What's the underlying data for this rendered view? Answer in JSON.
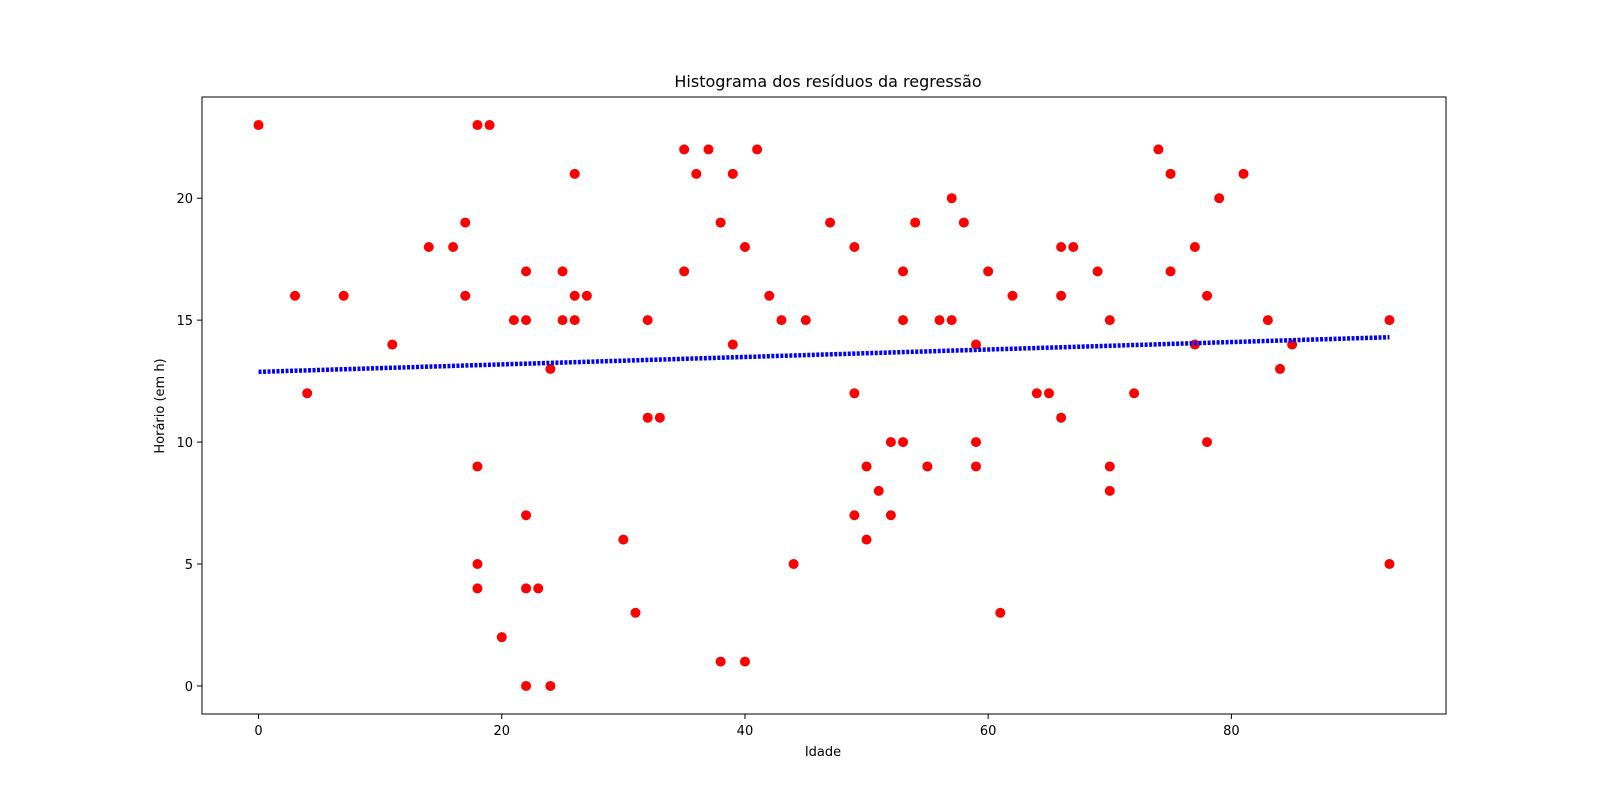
{
  "chart_data": {
    "type": "scatter",
    "title": "Histograma dos resíduos da regressão",
    "xlabel": "Idade",
    "ylabel": "Horário (em h)",
    "xlim": [
      -4.65,
      97.65
    ],
    "ylim": [
      -1.15,
      24.15
    ],
    "xticks": [
      0,
      20,
      40,
      60,
      80
    ],
    "yticks": [
      0,
      5,
      10,
      15,
      20
    ],
    "grid": false,
    "legend": "none",
    "series": [
      {
        "kind": "scatter",
        "color": "#ff0000",
        "points": [
          [
            0,
            23
          ],
          [
            3,
            16
          ],
          [
            4,
            12
          ],
          [
            7,
            16
          ],
          [
            11,
            14
          ],
          [
            14,
            18
          ],
          [
            16,
            18
          ],
          [
            17,
            19
          ],
          [
            17,
            16
          ],
          [
            18,
            23
          ],
          [
            19,
            23
          ],
          [
            18,
            9
          ],
          [
            18,
            5
          ],
          [
            18,
            4
          ],
          [
            20,
            2
          ],
          [
            21,
            15
          ],
          [
            22,
            17
          ],
          [
            22,
            15
          ],
          [
            22,
            7
          ],
          [
            22,
            4
          ],
          [
            22,
            0
          ],
          [
            23,
            4
          ],
          [
            24,
            13
          ],
          [
            24,
            0
          ],
          [
            25,
            17
          ],
          [
            25,
            15
          ],
          [
            26,
            21
          ],
          [
            26,
            16
          ],
          [
            26,
            15
          ],
          [
            27,
            16
          ],
          [
            30,
            6
          ],
          [
            31,
            3
          ],
          [
            32,
            15
          ],
          [
            32,
            11
          ],
          [
            33,
            11
          ],
          [
            35,
            22
          ],
          [
            35,
            17
          ],
          [
            36,
            21
          ],
          [
            37,
            22
          ],
          [
            38,
            19
          ],
          [
            38,
            1
          ],
          [
            39,
            21
          ],
          [
            39,
            14
          ],
          [
            40,
            18
          ],
          [
            40,
            1
          ],
          [
            41,
            22
          ],
          [
            42,
            16
          ],
          [
            43,
            15
          ],
          [
            44,
            5
          ],
          [
            45,
            15
          ],
          [
            47,
            19
          ],
          [
            49,
            18
          ],
          [
            49,
            12
          ],
          [
            49,
            7
          ],
          [
            50,
            9
          ],
          [
            50,
            6
          ],
          [
            51,
            8
          ],
          [
            52,
            10
          ],
          [
            52,
            7
          ],
          [
            53,
            17
          ],
          [
            53,
            15
          ],
          [
            53,
            10
          ],
          [
            54,
            19
          ],
          [
            55,
            9
          ],
          [
            56,
            15
          ],
          [
            57,
            20
          ],
          [
            57,
            15
          ],
          [
            58,
            19
          ],
          [
            59,
            14
          ],
          [
            59,
            10
          ],
          [
            59,
            9
          ],
          [
            60,
            17
          ],
          [
            61,
            3
          ],
          [
            62,
            16
          ],
          [
            64,
            12
          ],
          [
            65,
            12
          ],
          [
            66,
            18
          ],
          [
            66,
            16
          ],
          [
            66,
            11
          ],
          [
            67,
            18
          ],
          [
            69,
            17
          ],
          [
            70,
            15
          ],
          [
            70,
            9
          ],
          [
            70,
            8
          ],
          [
            72,
            12
          ],
          [
            74,
            22
          ],
          [
            75,
            21
          ],
          [
            75,
            17
          ],
          [
            77,
            18
          ],
          [
            77,
            14
          ],
          [
            78,
            16
          ],
          [
            78,
            10
          ],
          [
            79,
            20
          ],
          [
            81,
            21
          ],
          [
            83,
            15
          ],
          [
            84,
            13
          ],
          [
            85,
            14
          ],
          [
            93,
            15
          ],
          [
            93,
            5
          ]
        ]
      },
      {
        "kind": "line",
        "color": "#0000ff",
        "style": "dotted",
        "x": [
          0,
          93
        ],
        "y": [
          12.88,
          14.3
        ]
      }
    ]
  }
}
